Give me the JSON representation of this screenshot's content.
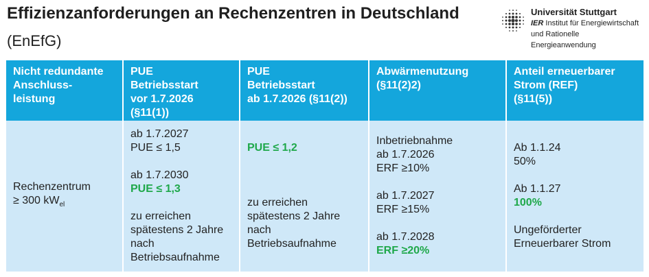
{
  "header": {
    "title": "Effizienzanforderungen an Rechenzentren in Deutschland",
    "subtitle": "(EnEfG)"
  },
  "logo": {
    "name": "Universität Stuttgart",
    "abbr": "IER",
    "line2": "Institut für Energiewirtschaft",
    "line3": "und Rationelle Energieanwendung"
  },
  "table": {
    "headers": [
      [
        "Nicht redundante",
        "Anschluss-",
        "leistung"
      ],
      [
        "PUE",
        "Betriebsstart",
        "vor 1.7.2026",
        "(§11(1))"
      ],
      [
        "PUE",
        "Betriebsstart",
        "ab 1.7.2026 (§11(2))"
      ],
      [
        "Abwärmenutzung",
        "(§11(2)2)"
      ],
      [
        "Anteil erneuerbarer",
        "Strom (REF)",
        "(§11(5))"
      ]
    ],
    "row": {
      "c1": {
        "l1": "Rechenzentrum",
        "l2_main": "≥ 300 kW",
        "l2_sub": "el"
      },
      "c2": {
        "l1": "ab 1.7.2027",
        "l2": "PUE ≤ 1,5",
        "l3": "ab 1.7.2030",
        "l4": "PUE ≤ 1,3",
        "l5": "zu erreichen",
        "l6": "spätestens 2 Jahre",
        "l7": "nach",
        "l8": "Betriebsaufnahme"
      },
      "c3": {
        "l1": "PUE ≤ 1,2",
        "l2": "zu erreichen",
        "l3": "spätestens 2 Jahre",
        "l4": "nach",
        "l5": "Betriebsaufnahme"
      },
      "c4": {
        "l1": "Inbetriebnahme",
        "l2": "ab 1.7.2026",
        "l3": "ERF ≥10%",
        "l4": "ab 1.7.2027",
        "l5": "ERF ≥15%",
        "l6": "ab 1.7.2028",
        "l7": "ERF ≥20%"
      },
      "c5": {
        "l1": "Ab 1.1.24",
        "l2": "50%",
        "l3": "Ab 1.1.27",
        "l4": "100%",
        "l5": "Ungeförderter",
        "l6": "Erneuerbarer Strom"
      }
    }
  },
  "colors": {
    "header_bg": "#14a6dc",
    "cell_bg": "#cfe8f8",
    "highlight": "#1fa84a"
  }
}
